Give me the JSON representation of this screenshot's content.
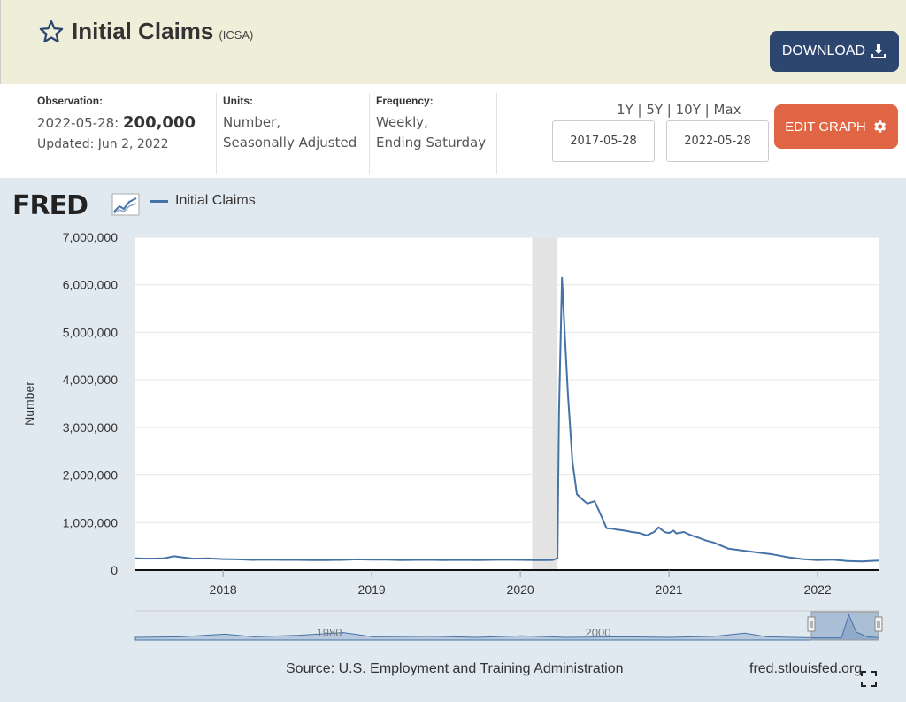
{
  "header": {
    "title": "Initial Claims",
    "series_id": "(ICSA)",
    "download_label": "DOWNLOAD"
  },
  "meta": {
    "observation_label": "Observation:",
    "observation_date": "2022-05-28:",
    "observation_value": "200,000",
    "updated": "Updated: Jun 2, 2022",
    "units_label": "Units:",
    "units_line1": "Number,",
    "units_line2": "Seasonally Adjusted",
    "frequency_label": "Frequency:",
    "frequency_line1": "Weekly,",
    "frequency_line2": "Ending Saturday",
    "range_1y": "1Y",
    "range_5y": "5Y",
    "range_10y": "10Y",
    "range_max": "Max",
    "start_date": "2017-05-28",
    "end_date": "2022-05-28",
    "edit_label": "EDIT GRAPH"
  },
  "panel": {
    "logo": "FRED",
    "legend_label": "Initial Claims",
    "source": "Source: U.S. Employment and Training Administration",
    "url": "fred.stlouisfed.org"
  },
  "colors": {
    "series": "#4572a7",
    "download_bg": "#2c4670",
    "edit_bg": "#e06544",
    "header_bg": "#efefd9",
    "panel_bg": "#e1e9f0",
    "recession": "#e3e3e3"
  },
  "chart_data": {
    "type": "line",
    "title": "Initial Claims",
    "xlabel": "",
    "ylabel": "Number",
    "xlim": [
      2017.41,
      2022.41
    ],
    "ylim": [
      0,
      7000000
    ],
    "y_ticks": [
      0,
      1000000,
      2000000,
      3000000,
      4000000,
      5000000,
      6000000,
      7000000
    ],
    "y_tick_labels": [
      "0",
      "1,000,000",
      "2,000,000",
      "3,000,000",
      "4,000,000",
      "5,000,000",
      "6,000,000",
      "7,000,000"
    ],
    "x_ticks": [
      2018,
      2019,
      2020,
      2021,
      2022
    ],
    "x_tick_labels": [
      "2018",
      "2019",
      "2020",
      "2021",
      "2022"
    ],
    "recession": [
      2020.08,
      2020.25
    ],
    "series": [
      {
        "name": "Initial Claims",
        "x": [
          2017.41,
          2017.5,
          2017.6,
          2017.67,
          2017.72,
          2017.8,
          2017.9,
          2018.0,
          2018.1,
          2018.2,
          2018.3,
          2018.4,
          2018.5,
          2018.6,
          2018.7,
          2018.8,
          2018.9,
          2019.0,
          2019.1,
          2019.2,
          2019.3,
          2019.4,
          2019.5,
          2019.6,
          2019.7,
          2019.8,
          2019.9,
          2020.0,
          2020.1,
          2020.15,
          2020.2,
          2020.22,
          2020.25,
          2020.26,
          2020.28,
          2020.3,
          2020.32,
          2020.35,
          2020.38,
          2020.42,
          2020.45,
          2020.5,
          2020.55,
          2020.58,
          2020.62,
          2020.65,
          2020.7,
          2020.75,
          2020.8,
          2020.85,
          2020.9,
          2020.93,
          2020.97,
          2021.0,
          2021.03,
          2021.05,
          2021.1,
          2021.15,
          2021.2,
          2021.25,
          2021.3,
          2021.4,
          2021.5,
          2021.6,
          2021.7,
          2021.8,
          2021.9,
          2022.0,
          2022.1,
          2022.2,
          2022.3,
          2022.35,
          2022.41
        ],
        "values": [
          245000,
          240000,
          245000,
          290000,
          270000,
          240000,
          245000,
          230000,
          225000,
          215000,
          220000,
          215000,
          215000,
          210000,
          210000,
          215000,
          225000,
          220000,
          220000,
          210000,
          215000,
          215000,
          210000,
          215000,
          210000,
          215000,
          220000,
          215000,
          210000,
          210000,
          210000,
          215000,
          250000,
          3300000,
          6150000,
          4900000,
          3700000,
          2300000,
          1600000,
          1480000,
          1400000,
          1450000,
          1100000,
          880000,
          870000,
          850000,
          830000,
          800000,
          780000,
          730000,
          800000,
          900000,
          800000,
          780000,
          830000,
          770000,
          800000,
          730000,
          680000,
          620000,
          580000,
          450000,
          410000,
          370000,
          330000,
          270000,
          230000,
          210000,
          220000,
          190000,
          180000,
          190000,
          200000
        ]
      }
    ],
    "navigator": {
      "x_tick_labels": [
        "1980",
        "2000"
      ]
    }
  }
}
